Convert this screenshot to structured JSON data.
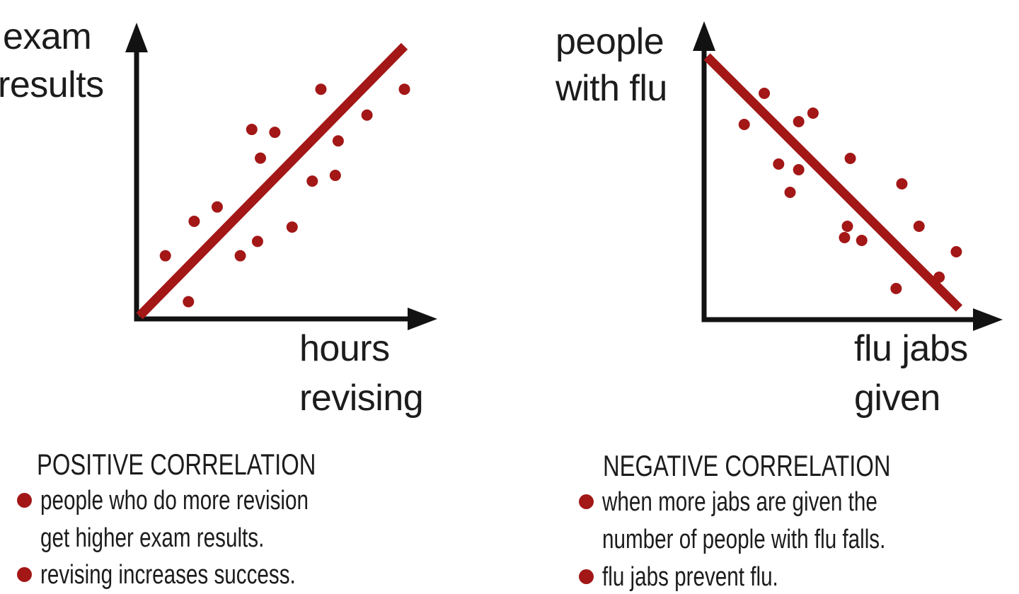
{
  "background": "#ffffff",
  "colors": {
    "accent_red": "#a31717",
    "text": "#1c1c1c",
    "axis": "#121212"
  },
  "chart_data": [
    {
      "type": "scatter",
      "title": "POSITIVE CORRELATION",
      "ylabel": "exam results",
      "ylabel_lines": [
        "exam",
        "results"
      ],
      "xlabel": "hours revising",
      "xlabel_lines": [
        "hours",
        "revising"
      ],
      "axis_ticks": "none",
      "xlim": [
        0,
        100
      ],
      "ylim": [
        0,
        100
      ],
      "points": [
        [
          64,
          80
        ],
        [
          93,
          80
        ],
        [
          80,
          71
        ],
        [
          40,
          66
        ],
        [
          48,
          65
        ],
        [
          70,
          62
        ],
        [
          43,
          56
        ],
        [
          69,
          50
        ],
        [
          61,
          48
        ],
        [
          28,
          39
        ],
        [
          20,
          34
        ],
        [
          54,
          32
        ],
        [
          42,
          27
        ],
        [
          36,
          22
        ],
        [
          10,
          22
        ],
        [
          18,
          6
        ]
      ],
      "trend_line": {
        "slope": "positive",
        "start": [
          1,
          1
        ],
        "end": [
          93,
          95
        ]
      },
      "captions": [
        {
          "lines": [
            "people who do more revision",
            "get higher exam results."
          ]
        },
        {
          "lines": [
            "revising increases success."
          ]
        }
      ]
    },
    {
      "type": "scatter",
      "title": "NEGATIVE CORRELATION",
      "ylabel": "people with flu",
      "ylabel_lines": [
        "people",
        "with flu"
      ],
      "xlabel": "flu jabs given",
      "xlabel_lines": [
        "flu jabs",
        "given"
      ],
      "axis_ticks": "none",
      "xlim": [
        0,
        100
      ],
      "ylim": [
        0,
        100
      ],
      "points": [
        [
          21,
          80
        ],
        [
          14,
          69
        ],
        [
          33,
          70
        ],
        [
          38,
          73
        ],
        [
          26,
          55
        ],
        [
          33,
          53
        ],
        [
          30,
          45
        ],
        [
          51,
          57
        ],
        [
          69,
          48
        ],
        [
          50,
          33
        ],
        [
          49,
          29
        ],
        [
          55,
          28
        ],
        [
          75,
          33
        ],
        [
          88,
          24
        ],
        [
          82,
          15
        ],
        [
          67,
          11
        ]
      ],
      "trend_line": {
        "slope": "negative",
        "start": [
          1,
          93
        ],
        "end": [
          89,
          4
        ]
      },
      "captions": [
        {
          "lines": [
            "when more jabs are given the",
            "number of people with flu falls."
          ]
        },
        {
          "lines": [
            "flu jabs prevent flu."
          ]
        }
      ]
    }
  ]
}
